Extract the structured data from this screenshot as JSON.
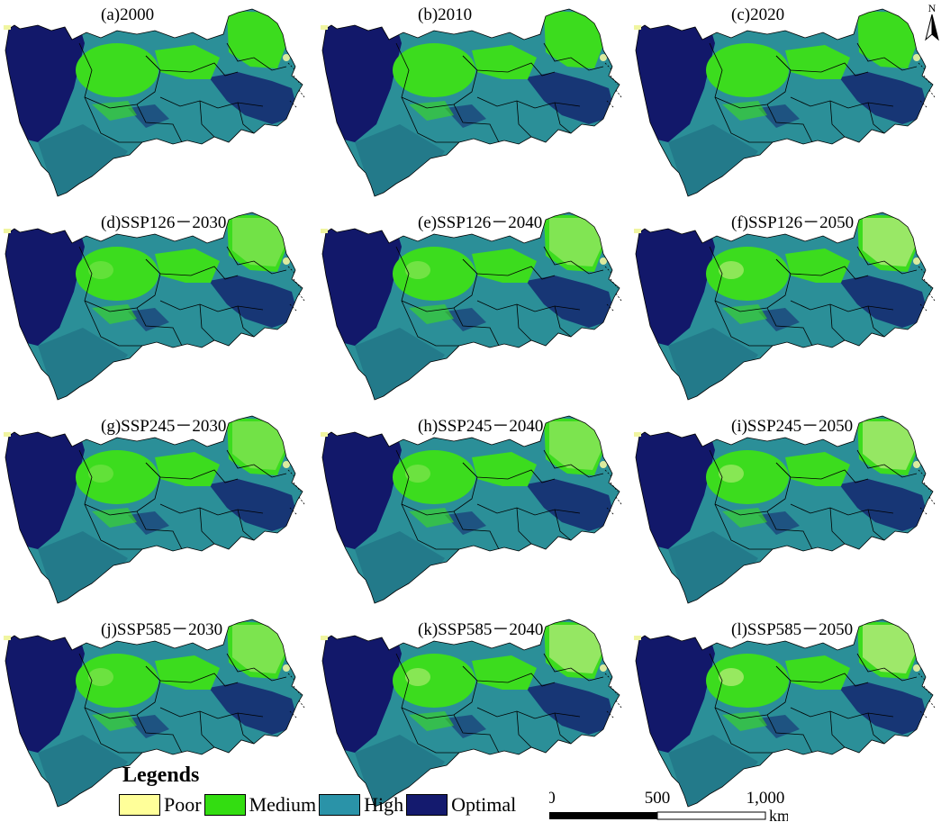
{
  "panels": [
    {
      "label": "(a)2000",
      "level": 0.0
    },
    {
      "label": "(b)2010",
      "level": 0.0
    },
    {
      "label": "(c)2020",
      "level": 0.0
    },
    {
      "label": "(d)SSP126－2030",
      "level": 0.35
    },
    {
      "label": "(e)SSP126－2040",
      "level": 0.5
    },
    {
      "label": "(f)SSP126－2050",
      "level": 0.75
    },
    {
      "label": "(g)SSP245－2030",
      "level": 0.35
    },
    {
      "label": "(h)SSP245－2040",
      "level": 0.45
    },
    {
      "label": "(i)SSP245－2050",
      "level": 0.7
    },
    {
      "label": "(j)SSP585－2030",
      "level": 0.45
    },
    {
      "label": "(k)SSP585－2040",
      "level": 0.7
    },
    {
      "label": "(l)SSP585－2050",
      "level": 0.85
    }
  ],
  "legend": {
    "title": "Legends",
    "items": [
      {
        "label": "Poor",
        "color": "#ffff99"
      },
      {
        "label": "Medium",
        "color": "#33dd11"
      },
      {
        "label": "High",
        "color": "#2a93a8"
      },
      {
        "label": "Optimal",
        "color": "#141a6e"
      }
    ]
  },
  "scale": {
    "ticks": [
      "0",
      "500",
      "1,000"
    ],
    "unit": "km"
  },
  "north_label": "N",
  "colors": {
    "poor": "#f0f5a0",
    "medium": "#3cdc1e",
    "medium_light": "#9ee86a",
    "high": "#2b8f98",
    "high_dark": "#1d6a80",
    "optimal": "#12186a",
    "boundary": "#000000"
  }
}
